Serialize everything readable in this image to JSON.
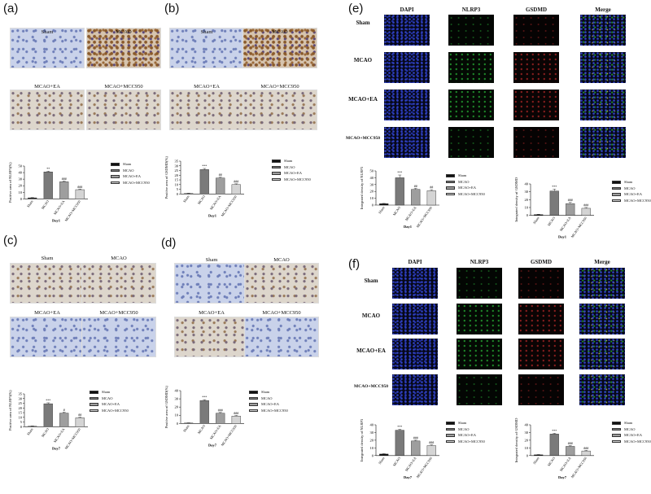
{
  "panels": {
    "a": {
      "label": "(a)"
    },
    "b": {
      "label": "(b)"
    },
    "c": {
      "label": "(c)"
    },
    "d": {
      "label": "(d)"
    },
    "e": {
      "label": "(e)"
    },
    "f": {
      "label": "(f)"
    }
  },
  "groups": [
    "Sham",
    "MCAO",
    "MCAO+EA",
    "MCAO+MCC950"
  ],
  "fluor_headers": [
    "DAPI",
    "NLRP3",
    "GSDMD",
    "Merge"
  ],
  "fluor_rows": [
    "Sham",
    "MCAO",
    "MCAO+EA",
    "MCAO+MCC950"
  ],
  "colors": {
    "bars": [
      "#111111",
      "#7a7a7a",
      "#9e9e9e",
      "#d4d4d4"
    ]
  },
  "chart_data": [
    {
      "id": "a",
      "type": "bar",
      "ylabel": "Positive area of NLRP3(%)",
      "xlabel": "Day1",
      "categories": [
        "Sham",
        "MCAO",
        "MCAO+EA",
        "MCAO+MCC950"
      ],
      "values": [
        1.5,
        41,
        26,
        14
      ],
      "errors": [
        0.5,
        1.2,
        1.1,
        0.9
      ],
      "sig": [
        "",
        "**",
        "###",
        "###"
      ],
      "ylim": [
        0,
        50
      ],
      "yticks": [
        0,
        10,
        20,
        30,
        40,
        50
      ],
      "ytick_labels": [
        "0",
        "10",
        "20",
        "30",
        "40",
        "50"
      ]
    },
    {
      "id": "b",
      "type": "bar",
      "ylabel": "Positive area of GSDMD(%)",
      "xlabel": "Day1",
      "categories": [
        "Sham",
        "MCAO",
        "MCAO+EA",
        "MCAO+MCC950"
      ],
      "values": [
        0.5,
        26,
        17,
        10
      ],
      "errors": [
        0.3,
        1.2,
        0.9,
        0.8
      ],
      "sig": [
        "",
        "***",
        "##",
        "###"
      ],
      "ylim": [
        0,
        35
      ],
      "yticks": [
        0,
        5,
        10,
        15,
        20,
        25,
        30,
        35
      ],
      "ytick_labels": [
        "0",
        "5",
        "10",
        "15",
        "20",
        "25",
        "30",
        "35"
      ]
    },
    {
      "id": "c",
      "type": "bar",
      "ylabel": "Positive area of NLRP3(%)",
      "xlabel": "Day7",
      "categories": [
        "Sham",
        "MCAO",
        "MCAO+EA",
        "MCAO+MCC950"
      ],
      "values": [
        0.5,
        24.5,
        14.5,
        9.5
      ],
      "errors": [
        0.3,
        1.0,
        1.0,
        0.8
      ],
      "sig": [
        "",
        "***",
        "#",
        "##"
      ],
      "ylim": [
        0,
        35
      ],
      "yticks": [
        0,
        5,
        10,
        15,
        20,
        25,
        30,
        35
      ],
      "ytick_labels": [
        "0",
        "5",
        "10",
        "15",
        "20",
        "25",
        "30",
        "35"
      ]
    },
    {
      "id": "d",
      "type": "bar",
      "ylabel": "Positive area of GSDMD(%)",
      "xlabel": "Day7",
      "categories": [
        "Sham",
        "MCAO",
        "MCAO+EA",
        "MCAO+MCC950"
      ],
      "values": [
        0.5,
        28,
        12.5,
        9
      ],
      "errors": [
        0.3,
        1.0,
        0.9,
        0.8
      ],
      "sig": [
        "",
        "***",
        "###",
        "###"
      ],
      "ylim": [
        0,
        40
      ],
      "yticks": [
        0,
        10,
        20,
        30,
        40
      ],
      "ytick_labels": [
        "0",
        "10",
        "20",
        "30",
        "40"
      ]
    },
    {
      "id": "e1",
      "type": "bar",
      "ylabel": "Integrated density of NLRP3",
      "xlabel": "Day1",
      "categories": [
        "Sham",
        "MCAO",
        "MCAO+EA",
        "MCAO+MCC950"
      ],
      "values": [
        2,
        40,
        23,
        21
      ],
      "errors": [
        0.5,
        4,
        1.5,
        1.5
      ],
      "sig": [
        "",
        "***",
        "##",
        "##"
      ],
      "ylim": [
        0,
        50
      ],
      "yticks": [
        0,
        10,
        20,
        30,
        40,
        50
      ],
      "ytick_labels": [
        "0",
        "10",
        "20",
        "30",
        "40",
        "50"
      ]
    },
    {
      "id": "e2",
      "type": "bar",
      "ylabel": "Integrated density of GSDMD",
      "xlabel": "Day1",
      "categories": [
        "Sham",
        "MCAO",
        "MCAO+EA",
        "MCAO+MCC950"
      ],
      "values": [
        1,
        31,
        15,
        9
      ],
      "errors": [
        0.4,
        2.5,
        1.5,
        1.0
      ],
      "sig": [
        "",
        "***",
        "###",
        "###"
      ],
      "ylim": [
        0,
        40
      ],
      "yticks": [
        0,
        10,
        20,
        30,
        40
      ],
      "ytick_labels": [
        "0",
        "10",
        "20",
        "30",
        "40"
      ]
    },
    {
      "id": "f1",
      "type": "bar",
      "ylabel": "Integrated density of NLRP3",
      "xlabel": "Day7",
      "categories": [
        "Sham",
        "MCAO",
        "MCAO+EA",
        "MCAO+MCC950"
      ],
      "values": [
        2,
        33,
        19,
        13
      ],
      "errors": [
        0.5,
        1.2,
        1.0,
        1.0
      ],
      "sig": [
        "",
        "***",
        "###",
        "###"
      ],
      "ylim": [
        0,
        40
      ],
      "yticks": [
        0,
        10,
        20,
        30,
        40
      ],
      "ytick_labels": [
        "0",
        "10",
        "20",
        "30",
        "40"
      ]
    },
    {
      "id": "f2",
      "type": "bar",
      "ylabel": "Integrated density of GSDMD",
      "xlabel": "Day7",
      "categories": [
        "Sham",
        "MCAO",
        "MCAO+EA",
        "MCAO+MCC950"
      ],
      "values": [
        1,
        28,
        12,
        6
      ],
      "errors": [
        0.4,
        1.0,
        1.0,
        0.8
      ],
      "sig": [
        "",
        "***",
        "###",
        "###"
      ],
      "ylim": [
        0,
        40
      ],
      "yticks": [
        0,
        10,
        20,
        30,
        40
      ],
      "ytick_labels": [
        "0",
        "10",
        "20",
        "30",
        "40"
      ]
    }
  ]
}
